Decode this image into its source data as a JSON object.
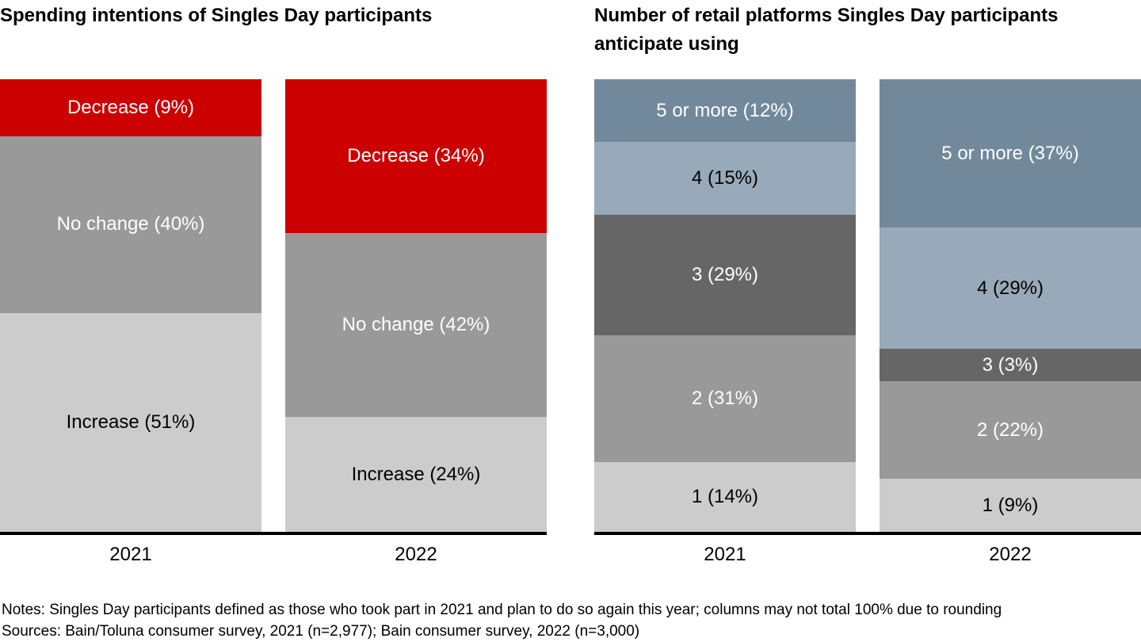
{
  "footer": {
    "notes": "Notes: Singles Day participants defined as those who took part in 2021 and plan to do so again this year; columns may not total 100% due to rounding",
    "sources": "Sources: Bain/Toluna consumer survey, 2021 (n=2,977); Bain consumer survey, 2022 (n=3,000)"
  },
  "colors": {
    "decrease_red": "#CC0000",
    "medium_gray": "#999999",
    "light_gray": "#CCCCCC",
    "dark_gray": "#666666",
    "blue_gray": "#72889B",
    "light_blue_gray": "#98AAB9",
    "axis_black": "#000000"
  },
  "chart_data": [
    {
      "type": "bar",
      "subtype": "stacked-100pct-column",
      "title": "Spending intentions of Singles Day participants",
      "categories": [
        "2021",
        "2022"
      ],
      "unit": "%",
      "ylim": [
        0,
        100
      ],
      "legend": "none",
      "grid": "off",
      "stack_order": "top-to-bottom",
      "series": [
        {
          "name": "Decrease",
          "color": "#CC0000",
          "text_color": "#FFFFFF",
          "values": [
            9,
            34
          ],
          "labels": [
            "Decrease (9%)",
            "Decrease (34%)"
          ]
        },
        {
          "name": "No change",
          "color": "#999999",
          "text_color": "#FFFFFF",
          "values": [
            40,
            42
          ],
          "labels": [
            "No change (40%)",
            "No change (42%)"
          ]
        },
        {
          "name": "Increase",
          "color": "#CCCCCC",
          "text_color": "#000000",
          "values": [
            51,
            24
          ],
          "labels": [
            "Increase (51%)",
            "Increase (24%)"
          ]
        }
      ]
    },
    {
      "type": "bar",
      "subtype": "stacked-100pct-column",
      "title": "Number of retail platforms Singles Day participants anticipate using",
      "categories": [
        "2021",
        "2022"
      ],
      "unit": "%",
      "ylim": [
        0,
        100
      ],
      "legend": "none",
      "grid": "off",
      "stack_order": "top-to-bottom",
      "series": [
        {
          "name": "5 or more",
          "color": "#72889B",
          "text_color": "#FFFFFF",
          "values": [
            12,
            37
          ],
          "labels": [
            "5 or more (12%)",
            "5 or more (37%)"
          ]
        },
        {
          "name": "4",
          "color": "#98AAB9",
          "text_color": "#000000",
          "values": [
            15,
            29
          ],
          "labels": [
            "4 (15%)",
            "4 (29%)"
          ]
        },
        {
          "name": "3",
          "color": "#666666",
          "text_color": "#FFFFFF",
          "values": [
            29,
            3
          ],
          "labels": [
            "3 (29%)",
            "3 (3%)"
          ]
        },
        {
          "name": "2",
          "color": "#999999",
          "text_color": "#FFFFFF",
          "values": [
            31,
            22
          ],
          "labels": [
            "2 (31%)",
            "2 (22%)"
          ]
        },
        {
          "name": "1",
          "color": "#CCCCCC",
          "text_color": "#000000",
          "values": [
            14,
            9
          ],
          "labels": [
            "1 (14%)",
            "1 (9%)"
          ]
        }
      ]
    }
  ]
}
